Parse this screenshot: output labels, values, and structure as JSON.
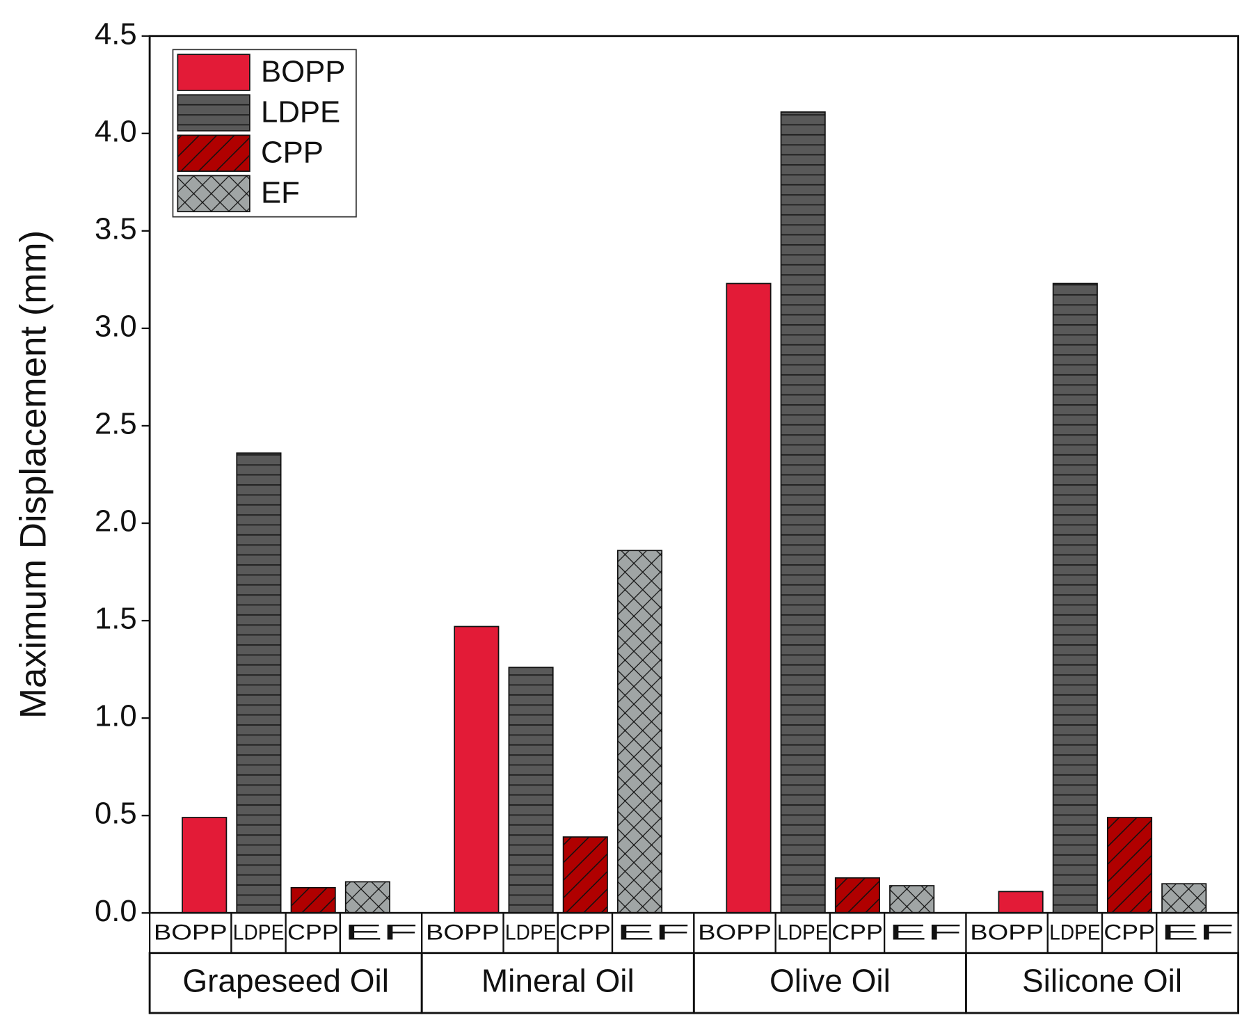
{
  "chart_data": {
    "type": "bar",
    "y_label": "Maximum Displacement (mm)",
    "categories": [
      "Grapeseed Oil",
      "Mineral Oil",
      "Olive Oil",
      "Silicone Oil"
    ],
    "series": [
      {
        "name": "BOPP",
        "color": "#e31b37",
        "hatch": "none",
        "values": [
          0.49,
          1.47,
          3.23,
          0.11
        ]
      },
      {
        "name": "LDPE",
        "color": "#595959",
        "hatch": "horizontal",
        "values": [
          2.36,
          1.26,
          4.11,
          3.23
        ]
      },
      {
        "name": "CPP",
        "color": "#b00000",
        "hatch": "diagonal",
        "values": [
          0.13,
          0.39,
          0.18,
          0.49
        ]
      },
      {
        "name": "EF",
        "color": "#a0a5a5",
        "hatch": "cross",
        "values": [
          0.16,
          1.86,
          0.14,
          0.15
        ]
      }
    ],
    "ylim": [
      0,
      4.5
    ],
    "yticks": [
      {
        "value": 0,
        "label": "0.0"
      },
      0.5,
      {
        "value": 1,
        "label": "1.0"
      },
      1.5,
      {
        "value": 2,
        "label": "2.0"
      },
      2.5,
      {
        "value": 3,
        "label": "3.0"
      },
      3.5,
      {
        "value": 4,
        "label": "4.0"
      },
      4.5
    ],
    "legend": "upper left",
    "grid": false
  }
}
